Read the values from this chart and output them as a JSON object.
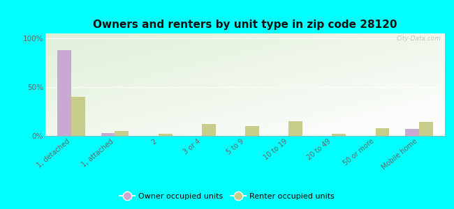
{
  "title": "Owners and renters by unit type in zip code 28120",
  "categories": [
    "1, detached",
    "1, attached",
    "2",
    "3 or 4",
    "5 to 9",
    "10 to 19",
    "20 to 49",
    "50 or more",
    "Mobile home"
  ],
  "owner_values": [
    88,
    3,
    0,
    0,
    0,
    0,
    0,
    0,
    7
  ],
  "renter_values": [
    40,
    5,
    2,
    12,
    10,
    15,
    2,
    8,
    14
  ],
  "owner_color": "#c9a8d4",
  "renter_color": "#c8cc8a",
  "background_color": "#00ffff",
  "ylabel_ticks": [
    "0%",
    "50%",
    "100%"
  ],
  "yticks": [
    0,
    50,
    100
  ],
  "ylim": [
    0,
    105
  ],
  "bar_width": 0.32,
  "watermark": "City-Data.com",
  "legend_owner": "Owner occupied units",
  "legend_renter": "Renter occupied units",
  "title_fontsize": 11,
  "tick_fontsize": 7,
  "ytick_fontsize": 7.5
}
